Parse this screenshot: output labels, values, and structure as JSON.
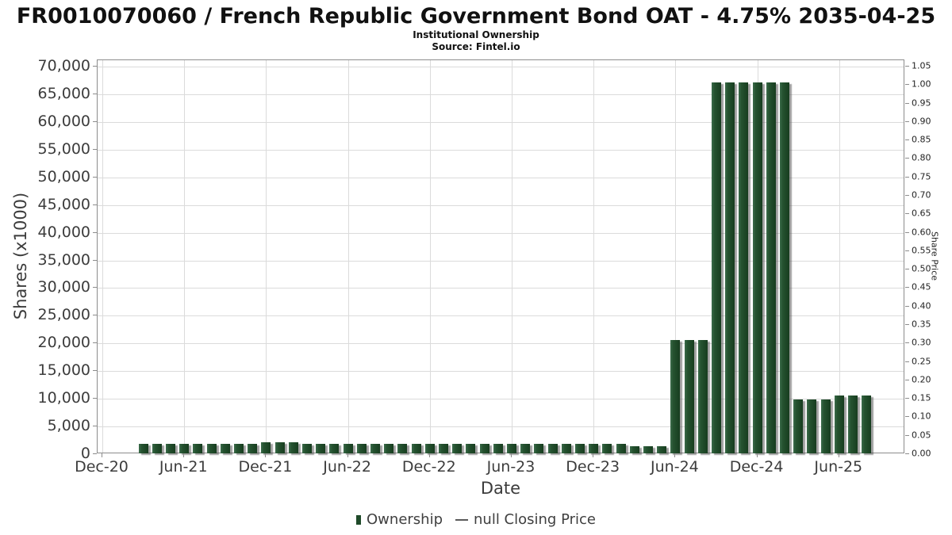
{
  "header": {
    "title": "FR0010070060 / French Republic Government Bond OAT - 4.75% 2035-04-25",
    "subtitle": "Institutional Ownership",
    "source": "Source: Fintel.io"
  },
  "legend": {
    "ownership_label": "Ownership",
    "price_label": "null Closing Price"
  },
  "colors": {
    "bar_green": "#1f4a29",
    "bar_shadow": "#8f8f8f",
    "grid": "#dbdbdb",
    "axis_frame": "#8c8c8c",
    "tick_text": "#3c3c3c"
  },
  "chart_data": {
    "type": "bar",
    "title": "FR0010070060 / French Republic Government Bond OAT - 4.75% 2035-04-25",
    "subtitle": "Institutional Ownership",
    "source": "Source: Fintel.io",
    "xlabel": "Date",
    "ylabel_left": "Shares (x1000)",
    "ylabel_right": "Share Price",
    "grid": true,
    "legend_position": "bottom",
    "left_axis": {
      "min": 0,
      "max": 70000,
      "step": 5000,
      "tick_labels": [
        "70,000",
        "65,000",
        "60,000",
        "55,000",
        "50,000",
        "45,000",
        "40,000",
        "35,000",
        "30,000",
        "25,000",
        "20,000",
        "15,000",
        "10,000",
        "5,000",
        "0"
      ]
    },
    "right_axis": {
      "min": 0.0,
      "max": 1.05,
      "step": 0.05,
      "tick_labels": [
        "1.05",
        "1.00",
        "0.95",
        "0.90",
        "0.85",
        "0.80",
        "0.75",
        "0.70",
        "0.65",
        "0.60",
        "0.55",
        "0.50",
        "0.45",
        "0.40",
        "0.35",
        "0.30",
        "0.25",
        "0.20",
        "0.15",
        "0.10",
        "0.05",
        "0.00"
      ]
    },
    "x_tick_labels": [
      "Dec-20",
      "Jun-21",
      "Dec-21",
      "Jun-22",
      "Dec-22",
      "Jun-23",
      "Dec-23",
      "Jun-24",
      "Dec-24",
      "Jun-25"
    ],
    "categories": [
      "Mar-21",
      "Apr-21",
      "May-21",
      "Jun-21",
      "Jul-21",
      "Aug-21",
      "Sep-21",
      "Oct-21",
      "Nov-21",
      "Dec-21",
      "Jan-22",
      "Feb-22",
      "Mar-22",
      "Apr-22",
      "May-22",
      "Jun-22",
      "Jul-22",
      "Aug-22",
      "Sep-22",
      "Oct-22",
      "Nov-22",
      "Dec-22",
      "Jan-23",
      "Feb-23",
      "Mar-23",
      "Apr-23",
      "May-23",
      "Jun-23",
      "Jul-23",
      "Aug-23",
      "Sep-23",
      "Oct-23",
      "Nov-23",
      "Dec-23",
      "Jan-24",
      "Feb-24",
      "Mar-24",
      "Apr-24",
      "May-24",
      "Jun-24",
      "Jul-24",
      "Aug-24",
      "Sep-24",
      "Oct-24",
      "Nov-24",
      "Dec-24",
      "Jan-25",
      "Feb-25",
      "Mar-25",
      "Apr-25",
      "May-25",
      "Jun-25",
      "Jul-25",
      "Aug-25"
    ],
    "series": [
      {
        "name": "Ownership",
        "type": "bar",
        "units": "shares x1000",
        "values": [
          1700,
          1700,
          1700,
          1700,
          1700,
          1700,
          1700,
          1700,
          1750,
          2000,
          2050,
          2050,
          1750,
          1700,
          1700,
          1700,
          1750,
          1750,
          1700,
          1700,
          1700,
          1700,
          1700,
          1700,
          1750,
          1750,
          1700,
          1700,
          1700,
          1700,
          1700,
          1700,
          1750,
          1750,
          1700,
          1700,
          1300,
          1300,
          1300,
          20500,
          20500,
          20500,
          67000,
          67000,
          67000,
          67000,
          67000,
          67000,
          9700,
          9700,
          9700,
          10400,
          10400,
          10400
        ]
      },
      {
        "name": "null Closing Price",
        "type": "line",
        "values": []
      }
    ]
  }
}
